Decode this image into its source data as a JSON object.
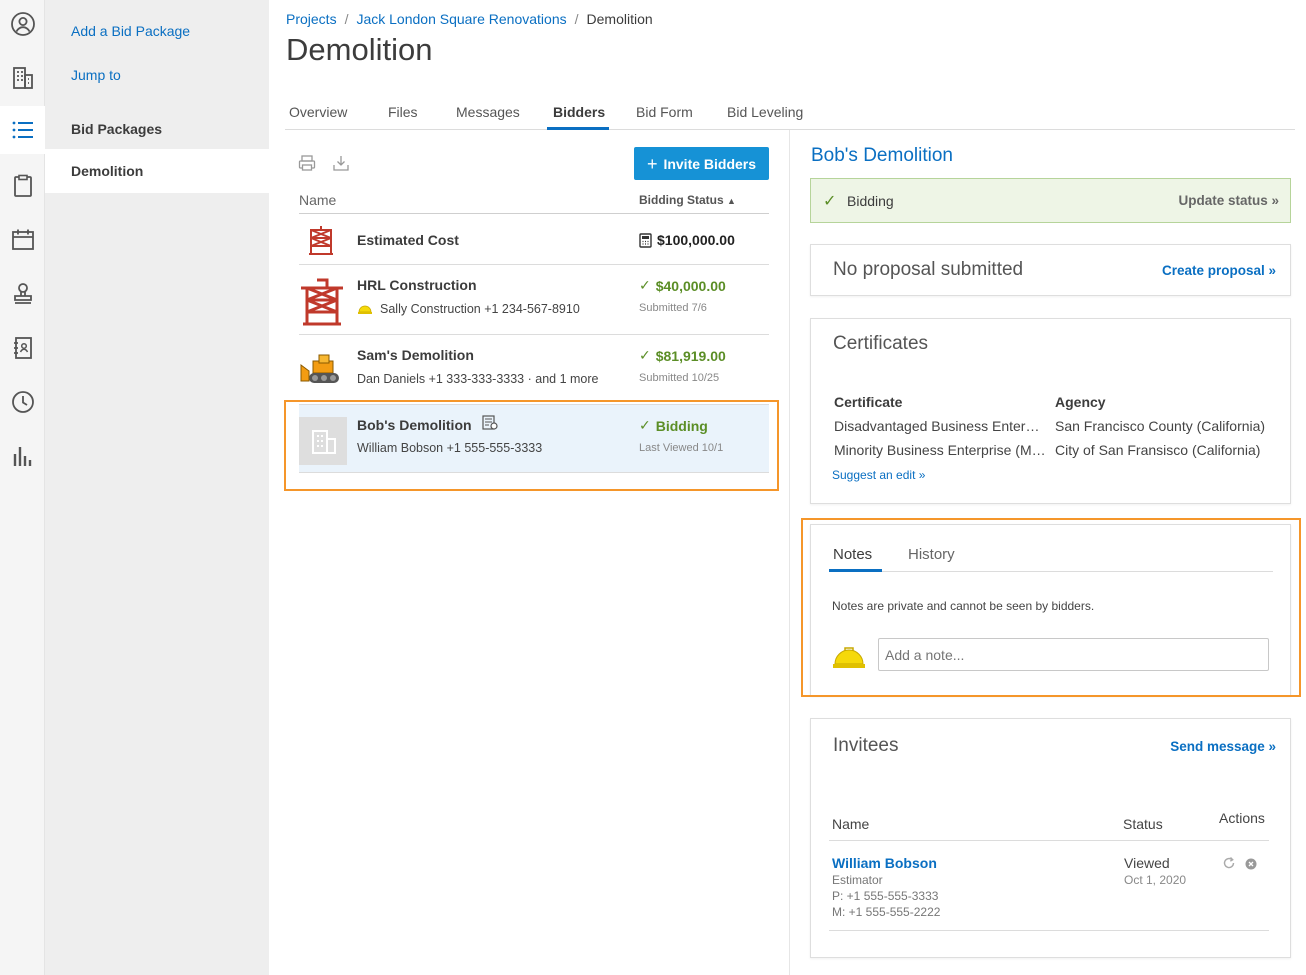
{
  "subnav": {
    "add_bid_package": "Add a Bid Package",
    "jump_to": "Jump to",
    "bid_packages": "Bid Packages",
    "current": "Demolition"
  },
  "breadcrumb": {
    "projects": "Projects",
    "project": "Jack London Square Renovations",
    "current": "Demolition"
  },
  "page_title": "Demolition",
  "tabs": [
    "Overview",
    "Files",
    "Messages",
    "Bidders",
    "Bid Form",
    "Bid Leveling"
  ],
  "active_tab": "Bidders",
  "invite_button": "Invite Bidders",
  "list": {
    "col_name": "Name",
    "col_status": "Bidding Status",
    "rows": [
      {
        "name": "Estimated Cost",
        "sub": "",
        "value": "$100,000.00",
        "date": ""
      },
      {
        "name": "HRL Construction",
        "sub": "Sally Construction +1 234-567-8910",
        "value": "$40,000.00",
        "date": "Submitted 7/6"
      },
      {
        "name": "Sam's Demolition",
        "sub": "Dan Daniels +1 333-333-3333 · and 1 more",
        "value": "$81,919.00",
        "date": "Submitted 10/25"
      },
      {
        "name": "Bob's Demolition",
        "sub": "William Bobson +1 555-555-3333",
        "value": "Bidding",
        "date": "Last Viewed 10/1"
      }
    ]
  },
  "detail": {
    "title": "Bob's Demolition",
    "status": "Bidding",
    "update_status": "Update status »",
    "proposal_text": "No proposal submitted",
    "create_proposal": "Create proposal »",
    "certificates": {
      "title": "Certificates",
      "col_certificate": "Certificate",
      "col_agency": "Agency",
      "rows": [
        {
          "certificate": "Disadvantaged Business Enterprise",
          "agency": "San Francisco County (California)"
        },
        {
          "certificate": "Minority Business Enterprise (MBE)",
          "agency": "City of San Fransisco (California)"
        }
      ],
      "suggest_edit": "Suggest an edit »"
    },
    "notes": {
      "tab_notes": "Notes",
      "tab_history": "History",
      "info": "Notes are private and cannot be seen by bidders.",
      "placeholder": "Add a note..."
    },
    "invitees": {
      "title": "Invitees",
      "send_message": "Send message »",
      "col_name": "Name",
      "col_status": "Status",
      "col_actions": "Actions",
      "person": {
        "name": "William Bobson",
        "role": "Estimator",
        "phone": "P: +1 555-555-3333",
        "mobile": "M: +1 555-555-2222",
        "status": "Viewed",
        "status_date": "Oct 1, 2020"
      }
    }
  },
  "colors": {
    "link": "#0a6fc2",
    "primary_button": "#1692d6",
    "success": "#5b8e26",
    "highlight_border": "#f5962a"
  }
}
